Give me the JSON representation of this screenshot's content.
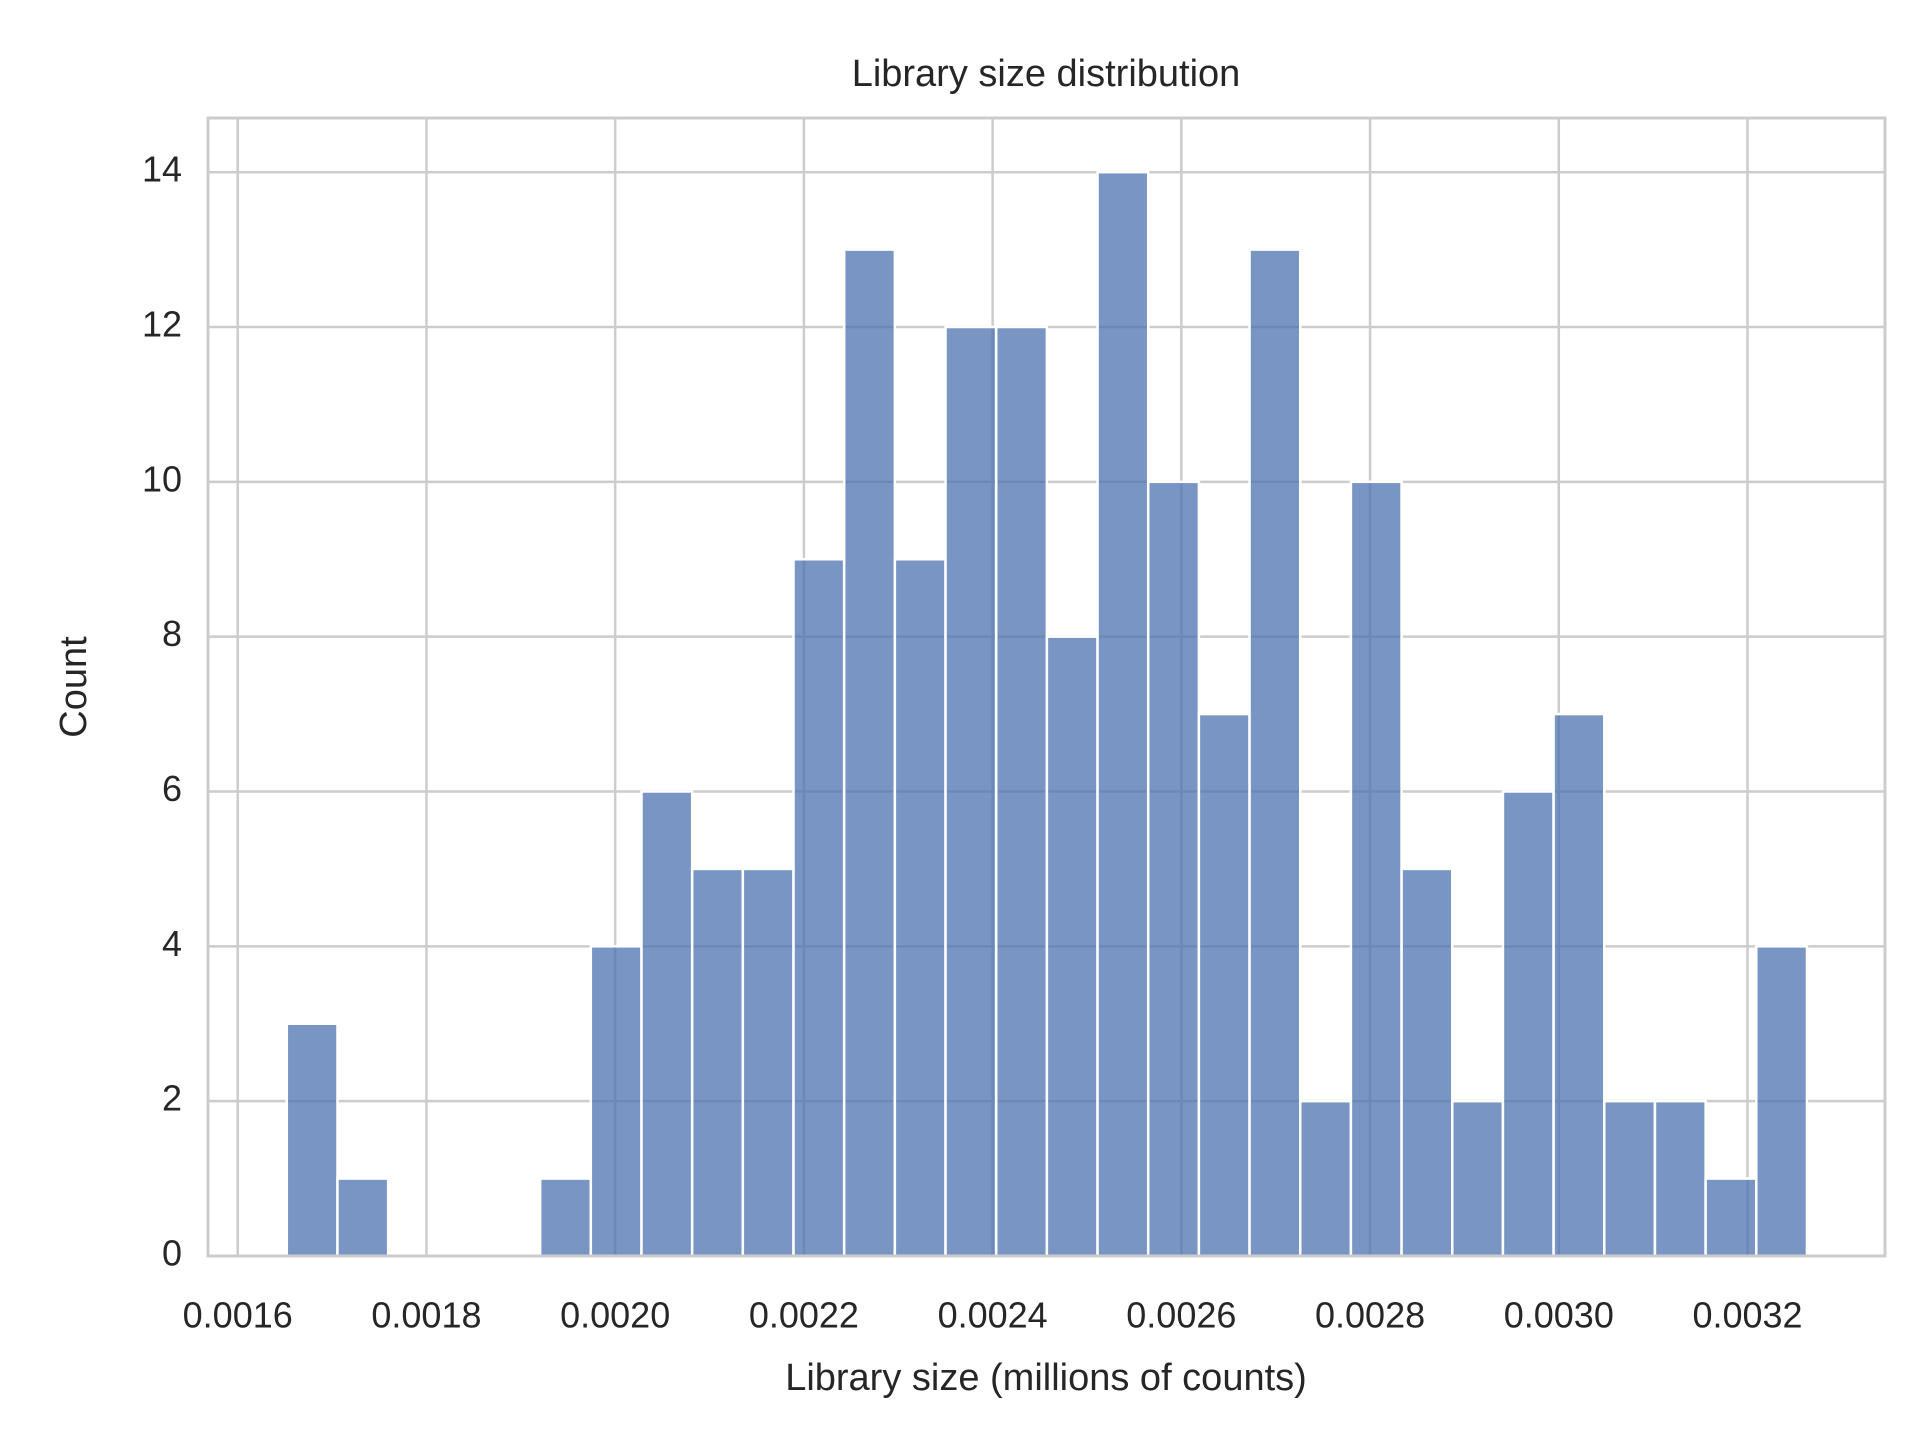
{
  "chart_data": {
    "type": "histogram",
    "title": "Library size distribution",
    "x_label": "Library size (millions of counts)",
    "y_label": "Count",
    "bins": [
      0.001652,
      0.0017057,
      0.0017594,
      0.0018131,
      0.0018668,
      0.0019205,
      0.0019742,
      0.0020279,
      0.0020816,
      0.0021353,
      0.002189,
      0.0022427,
      0.0022964,
      0.0023501,
      0.0024038,
      0.0024575,
      0.0025112,
      0.0025649,
      0.0026186,
      0.0026723,
      0.002726,
      0.0027797,
      0.0028334,
      0.0028871,
      0.0029408,
      0.0029945,
      0.0030482,
      0.0031019,
      0.0031556,
      0.0032093,
      0.003263
    ],
    "values": [
      3,
      1,
      0,
      0,
      0,
      1,
      4,
      6,
      5,
      5,
      9,
      13,
      9,
      12,
      12,
      8,
      14,
      10,
      7,
      13,
      2,
      10,
      5,
      2,
      6,
      7,
      2,
      2,
      1,
      4
    ],
    "color": "#4c72b0",
    "xlim": [
      0.0015685,
      0.0033457
    ],
    "xticks": [
      0.0016,
      0.0018,
      {
        "value": 0.002,
        "label": "0.0020"
      },
      0.0022,
      0.0024,
      0.0026,
      0.0028,
      {
        "value": 0.003,
        "label": "0.0030"
      },
      0.0032
    ],
    "ylim": [
      0,
      14.7
    ],
    "yticks": [
      0,
      2,
      4,
      6,
      8,
      10,
      12,
      14
    ],
    "grid": true
  }
}
